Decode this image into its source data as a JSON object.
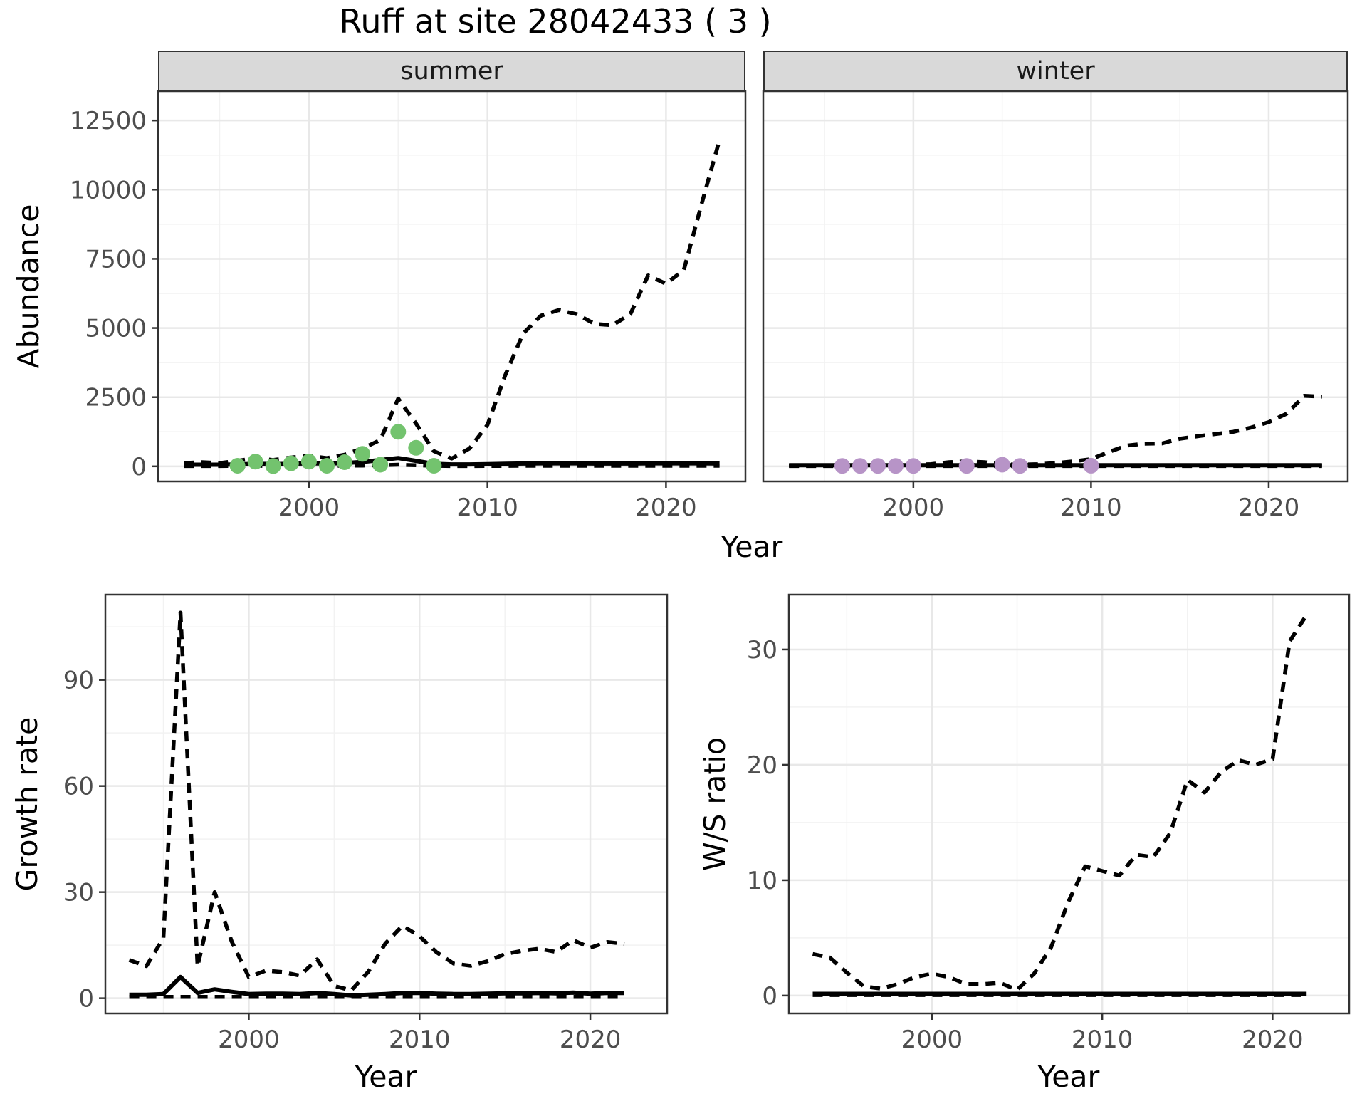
{
  "title": "Ruff at site 28042433 ( 3 )",
  "axis_labels": {
    "x_top": "Year",
    "x_bottom_left": "Year",
    "x_bottom_right": "Year",
    "y_abundance": "Abundance",
    "y_growth": "Growth rate",
    "y_ws": "W/S ratio"
  },
  "colors": {
    "line": "#000000",
    "summer_points": "#73c36e",
    "winter_points": "#b794c7",
    "grid_major": "#e8e8e8",
    "grid_minor": "#f2f2f2",
    "strip_bg": "#d9d9d9",
    "panel_border": "#333333",
    "axis_text": "#4d4d4d"
  },
  "chart_data": [
    {
      "id": "summer",
      "type": "line",
      "facet_label": "summer",
      "xlabel": "Year",
      "ylabel": "Abundance",
      "xlim": [
        1991.55,
        2024.45
      ],
      "ylim": [
        -545,
        13560
      ],
      "x_ticks": [
        2000,
        2010,
        2020
      ],
      "x_minor": [
        1995,
        2005,
        2015
      ],
      "y_ticks": [
        0,
        2500,
        5000,
        7500,
        10000,
        12500
      ],
      "y_minor": [
        1250,
        3750,
        6250,
        8750,
        11250
      ],
      "years": [
        1993,
        1994,
        1995,
        1996,
        1997,
        1998,
        1999,
        2000,
        2001,
        2002,
        2003,
        2004,
        2005,
        2006,
        2007,
        2008,
        2009,
        2010,
        2011,
        2012,
        2013,
        2014,
        2015,
        2016,
        2017,
        2018,
        2019,
        2020,
        2021,
        2022,
        2023
      ],
      "series": [
        {
          "name": "upper-ci",
          "style": "dashed",
          "values": [
            120,
            150,
            120,
            200,
            300,
            230,
            320,
            380,
            300,
            420,
            650,
            950,
            2450,
            1550,
            550,
            280,
            650,
            1500,
            3300,
            4800,
            5450,
            5650,
            5500,
            5150,
            5100,
            5500,
            6900,
            6600,
            7100,
            9500,
            11800
          ]
        },
        {
          "name": "index",
          "style": "solid",
          "values": [
            60,
            60,
            60,
            70,
            90,
            80,
            90,
            110,
            100,
            120,
            160,
            230,
            300,
            200,
            90,
            70,
            70,
            80,
            90,
            100,
            110,
            110,
            110,
            100,
            100,
            100,
            110,
            110,
            110,
            110,
            100
          ]
        },
        {
          "name": "lower-ci",
          "style": "dashed",
          "values": [
            10,
            10,
            10,
            15,
            20,
            15,
            20,
            25,
            20,
            25,
            30,
            40,
            60,
            40,
            20,
            10,
            10,
            15,
            15,
            20,
            20,
            20,
            20,
            20,
            20,
            20,
            20,
            20,
            20,
            20,
            20
          ]
        }
      ],
      "points": {
        "name": "observed-counts",
        "color": "#73c36e",
        "years": [
          1996,
          1997,
          1998,
          1999,
          2000,
          2001,
          2002,
          2003,
          2004,
          2005,
          2006,
          2007
        ],
        "values": [
          20,
          170,
          10,
          110,
          170,
          20,
          150,
          450,
          60,
          1250,
          670,
          20
        ]
      }
    },
    {
      "id": "winter",
      "type": "line",
      "facet_label": "winter",
      "xlabel": "Year",
      "ylabel": "Abundance",
      "xlim": [
        1991.55,
        2024.45
      ],
      "ylim": [
        -545,
        13560
      ],
      "x_ticks": [
        2000,
        2010,
        2020
      ],
      "x_minor": [
        1995,
        2005,
        2015
      ],
      "y_ticks": [
        0,
        2500,
        5000,
        7500,
        10000,
        12500
      ],
      "y_minor": [
        1250,
        3750,
        6250,
        8750,
        11250
      ],
      "years": [
        1993,
        1994,
        1995,
        1996,
        1997,
        1998,
        1999,
        2000,
        2001,
        2002,
        2003,
        2004,
        2005,
        2006,
        2007,
        2008,
        2009,
        2010,
        2011,
        2012,
        2013,
        2014,
        2015,
        2016,
        2017,
        2018,
        2019,
        2020,
        2021,
        2022,
        2023
      ],
      "series": [
        {
          "name": "upper-ci",
          "style": "dashed",
          "values": [
            30,
            30,
            30,
            30,
            30,
            30,
            40,
            60,
            80,
            150,
            180,
            150,
            80,
            60,
            80,
            120,
            180,
            260,
            520,
            750,
            820,
            830,
            1000,
            1090,
            1170,
            1250,
            1400,
            1600,
            1900,
            2550,
            2520
          ]
        },
        {
          "name": "index",
          "style": "solid",
          "values": [
            40,
            40,
            40,
            40,
            40,
            40,
            40,
            40,
            40,
            40,
            40,
            40,
            40,
            40,
            40,
            40,
            40,
            40,
            40,
            40,
            40,
            40,
            40,
            40,
            40,
            40,
            40,
            40,
            40,
            40,
            40
          ]
        },
        {
          "name": "lower-ci",
          "style": "dashed",
          "values": [
            10,
            10,
            10,
            10,
            10,
            10,
            10,
            10,
            10,
            10,
            10,
            10,
            10,
            10,
            10,
            10,
            10,
            10,
            10,
            10,
            10,
            10,
            10,
            10,
            10,
            10,
            10,
            10,
            10,
            10,
            10
          ]
        }
      ],
      "points": {
        "name": "observed-counts",
        "color": "#b794c7",
        "years": [
          1996,
          1997,
          1998,
          1999,
          2000,
          2003,
          2005,
          2006,
          2010
        ],
        "values": [
          15,
          15,
          15,
          15,
          15,
          15,
          60,
          15,
          25
        ]
      }
    },
    {
      "id": "growth",
      "type": "line",
      "facet_label": "",
      "xlabel": "Year",
      "ylabel": "Growth rate",
      "xlim": [
        1991.6,
        2024.5
      ],
      "ylim": [
        -4.3,
        114.1
      ],
      "x_ticks": [
        2000,
        2010,
        2020
      ],
      "x_minor": [
        1995,
        2005,
        2015
      ],
      "y_ticks": [
        0,
        30,
        60,
        90
      ],
      "y_minor": [
        15,
        45,
        75,
        105
      ],
      "years": [
        1993,
        1994,
        1995,
        1996,
        1997,
        1998,
        1999,
        2000,
        2001,
        2002,
        2003,
        2004,
        2005,
        2006,
        2007,
        2008,
        2009,
        2010,
        2011,
        2012,
        2013,
        2014,
        2015,
        2016,
        2017,
        2018,
        2019,
        2020,
        2021,
        2022
      ],
      "series": [
        {
          "name": "upper-ci",
          "style": "dashed",
          "values": [
            10.8,
            9.1,
            17,
            109,
            9,
            30,
            16,
            6,
            7.8,
            7.4,
            6.4,
            11,
            3.5,
            2.2,
            7.5,
            15.5,
            20.5,
            17.5,
            13,
            9.8,
            9.2,
            10.5,
            12.5,
            13.4,
            14,
            13.1,
            16.4,
            14.3,
            15.9,
            15.4
          ]
        },
        {
          "name": "index",
          "style": "solid",
          "values": [
            1,
            1,
            1.2,
            6,
            1.5,
            2.5,
            1.8,
            1.2,
            1.3,
            1.3,
            1.2,
            1.5,
            1.2,
            0.8,
            1,
            1.2,
            1.5,
            1.5,
            1.3,
            1.2,
            1.2,
            1.3,
            1.4,
            1.4,
            1.5,
            1.4,
            1.6,
            1.3,
            1.5,
            1.5
          ]
        },
        {
          "name": "lower-ci",
          "style": "dashed",
          "values": [
            0.4,
            0.4,
            0.4,
            0.4,
            0.4,
            0.4,
            0.4,
            0.4,
            0.4,
            0.4,
            0.4,
            0.4,
            0.4,
            0.4,
            0.4,
            0.4,
            0.4,
            0.4,
            0.4,
            0.4,
            0.4,
            0.4,
            0.4,
            0.4,
            0.4,
            0.4,
            0.4,
            0.4,
            0.4,
            0.4
          ]
        }
      ],
      "points": null
    },
    {
      "id": "ws",
      "type": "line",
      "facet_label": "",
      "xlabel": "Year",
      "ylabel": "W/S ratio",
      "xlim": [
        1991.6,
        2024.5
      ],
      "ylim": [
        -1.55,
        34.75
      ],
      "x_ticks": [
        2000,
        2010,
        2020
      ],
      "x_minor": [
        1995,
        2005,
        2015
      ],
      "y_ticks": [
        0,
        10,
        20,
        30
      ],
      "y_minor": [
        5,
        15,
        25
      ],
      "years": [
        1993,
        1994,
        1995,
        1996,
        1997,
        1998,
        1999,
        2000,
        2001,
        2002,
        2003,
        2004,
        2005,
        2006,
        2007,
        2008,
        2009,
        2010,
        2011,
        2012,
        2013,
        2014,
        2015,
        2016,
        2017,
        2018,
        2019,
        2020,
        2021,
        2022
      ],
      "series": [
        {
          "name": "upper-ci",
          "style": "dashed",
          "values": [
            3.6,
            3.3,
            2.0,
            0.8,
            0.6,
            1.0,
            1.6,
            1.9,
            1.6,
            1.0,
            1.0,
            1.1,
            0.5,
            1.9,
            4.2,
            8.1,
            11.2,
            10.8,
            10.4,
            12.2,
            12.0,
            14.1,
            18.7,
            17.6,
            19.4,
            20.4,
            20.0,
            20.5,
            30.7,
            33.0
          ]
        },
        {
          "name": "index",
          "style": "solid",
          "values": [
            0.15,
            0.15,
            0.15,
            0.15,
            0.15,
            0.15,
            0.15,
            0.15,
            0.15,
            0.15,
            0.15,
            0.15,
            0.15,
            0.15,
            0.15,
            0.15,
            0.15,
            0.15,
            0.15,
            0.15,
            0.15,
            0.15,
            0.15,
            0.15,
            0.15,
            0.15,
            0.15,
            0.15,
            0.15,
            0.15
          ]
        },
        {
          "name": "lower-ci",
          "style": "dashed",
          "values": [
            0.05,
            0.05,
            0.05,
            0.05,
            0.05,
            0.05,
            0.05,
            0.05,
            0.05,
            0.05,
            0.05,
            0.05,
            0.05,
            0.05,
            0.05,
            0.05,
            0.05,
            0.05,
            0.05,
            0.05,
            0.05,
            0.05,
            0.05,
            0.05,
            0.05,
            0.05,
            0.05,
            0.05,
            0.05,
            0.05
          ]
        }
      ],
      "points": null
    }
  ]
}
